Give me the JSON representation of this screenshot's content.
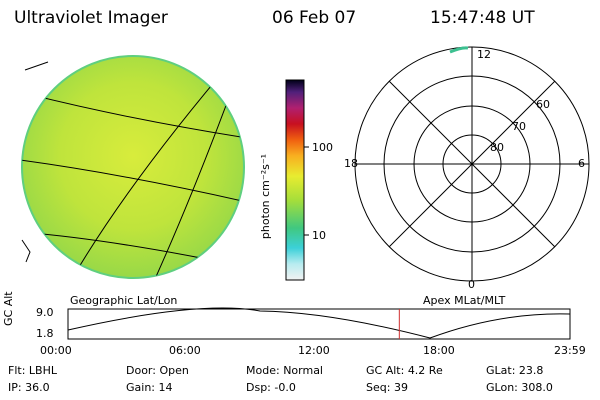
{
  "header": {
    "instrument": "Ultraviolet Imager",
    "date": "06 Feb 07",
    "time": "15:47:48 UT"
  },
  "colorbar": {
    "unit_label": "photon cm⁻²s⁻¹",
    "ticks": [
      "100",
      "10"
    ]
  },
  "polar_plot": {
    "mlt_labels": [
      "12",
      "18",
      "6",
      "0"
    ],
    "lat_labels": [
      "60",
      "70",
      "80"
    ]
  },
  "image_caption": "Geographic Lat/Lon",
  "polar_caption": "Apex MLat/MLT",
  "altitude_plot": {
    "ylabel": "GC Alt",
    "y_ticks": [
      "9.0",
      "1.8"
    ],
    "x_ticks": [
      "00:00",
      "06:00",
      "12:00",
      "18:00",
      "23:59"
    ],
    "current_time_fraction": 0.66
  },
  "status": {
    "row1": [
      {
        "label": "Flt:",
        "value": "LBHL"
      },
      {
        "label": "Door:",
        "value": "Open"
      },
      {
        "label": "Mode:",
        "value": "Normal"
      },
      {
        "label": "GC Alt:",
        "value": "4.2 Re"
      },
      {
        "label": "GLat:",
        "value": "23.8"
      }
    ],
    "row2": [
      {
        "label": "IP:",
        "value": "36.0"
      },
      {
        "label": "Gain:",
        "value": "14"
      },
      {
        "label": "Dsp:",
        "value": "-0.0"
      },
      {
        "label": "Seq:",
        "value": "39"
      },
      {
        "label": "GLon:",
        "value": "308.0"
      }
    ]
  },
  "colors": {
    "disk_fill": "#b8e43a",
    "disk_edge": "#5fcf7f",
    "marker": "#d03030"
  }
}
